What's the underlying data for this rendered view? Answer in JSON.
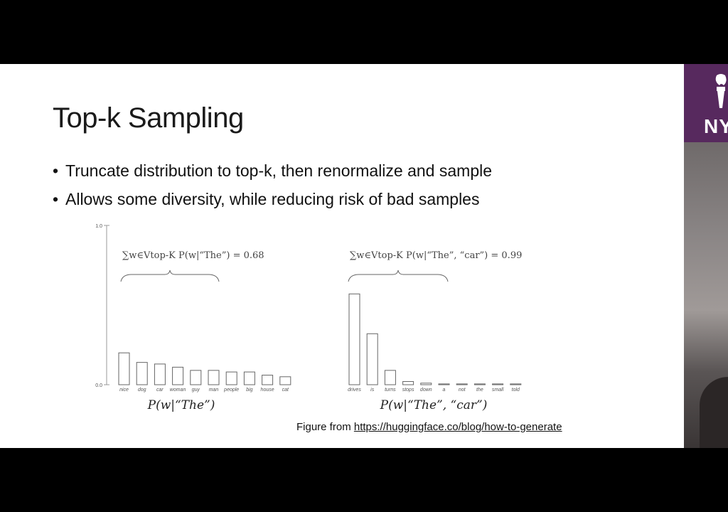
{
  "slide": {
    "title": "Top-k Sampling",
    "bullets": [
      "Truncate distribution to top-k, then renormalize and sample",
      "Allows some diversity, while reducing risk of bad samples"
    ],
    "caption_prefix": "Figure from ",
    "caption_link": "https://huggingface.co/blog/how-to-generate"
  },
  "sidebar": {
    "logo_text": "NY",
    "logo_icon": "torch-icon"
  },
  "chart_data": [
    {
      "type": "bar",
      "categories": [
        "nice",
        "dog",
        "car",
        "woman",
        "guy",
        "man",
        "people",
        "big",
        "house",
        "cat"
      ],
      "values": [
        0.2,
        0.14,
        0.13,
        0.11,
        0.09,
        0.09,
        0.08,
        0.08,
        0.06,
        0.05
      ],
      "ylim": [
        0,
        1.0
      ],
      "yticks": [
        "1.0",
        "0.0"
      ],
      "xlabel": "P(w|“The”)",
      "annotation": "∑w∈Vtop-K P(w|“The”) = 0.68"
    },
    {
      "type": "bar",
      "categories": [
        "drives",
        "is",
        "turns",
        "stops",
        "down",
        "a",
        "not",
        "the",
        "small",
        "told"
      ],
      "values": [
        0.57,
        0.32,
        0.09,
        0.02,
        0.01,
        0.005,
        0.005,
        0.005,
        0.005,
        0.005
      ],
      "ylim": [
        0,
        1.0
      ],
      "xlabel": "P(w|“The”, “car”)",
      "annotation": "∑w∈Vtop-K P(w|“The”, “car”) = 0.99"
    }
  ]
}
